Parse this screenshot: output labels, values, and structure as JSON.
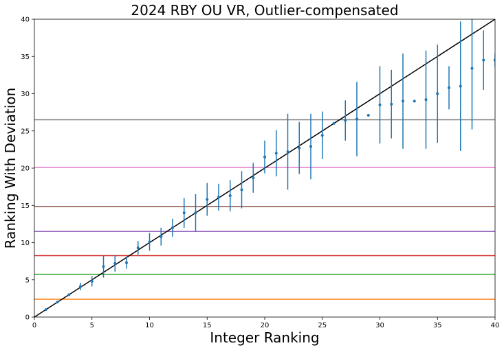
{
  "chart_data": {
    "type": "scatter",
    "title": "2024 RBY OU VR, Outlier-compensated",
    "xlabel": "Integer Ranking",
    "ylabel": "Ranking With Deviation",
    "xlim": [
      0,
      40
    ],
    "ylim": [
      0,
      40
    ],
    "xticks": [
      0,
      5,
      10,
      15,
      20,
      25,
      30,
      35,
      40
    ],
    "yticks": [
      0,
      5,
      10,
      15,
      20,
      25,
      30,
      35,
      40
    ],
    "grid": false,
    "reference_line": {
      "from": [
        0,
        0
      ],
      "to": [
        40,
        40
      ],
      "color": "#000000"
    },
    "horizontal_lines": [
      {
        "y": 2.4,
        "color": "#ff7f0e"
      },
      {
        "y": 5.75,
        "color": "#2ca02c"
      },
      {
        "y": 8.25,
        "color": "#d62728"
      },
      {
        "y": 11.5,
        "color": "#9467bd"
      },
      {
        "y": 14.85,
        "color": "#8c564b"
      },
      {
        "y": 20.1,
        "color": "#e377c2"
      },
      {
        "y": 26.5,
        "color": "#7f7f7f"
      }
    ],
    "series": [
      {
        "color": "#1f77b4",
        "points": [
          {
            "x": 1,
            "y": 1.0,
            "err": 0
          },
          {
            "x": 2,
            "y": 2.0,
            "err": 0
          },
          {
            "x": 3,
            "y": 3.0,
            "err": 0
          },
          {
            "x": 4,
            "y": 4.1,
            "err": 0.5
          },
          {
            "x": 5,
            "y": 4.8,
            "err": 0.7
          },
          {
            "x": 6,
            "y": 6.8,
            "err": 1.5
          },
          {
            "x": 7,
            "y": 7.2,
            "err": 1.1
          },
          {
            "x": 8,
            "y": 7.3,
            "err": 0.8
          },
          {
            "x": 9,
            "y": 9.3,
            "err": 0.9
          },
          {
            "x": 10,
            "y": 10.1,
            "err": 1.2
          },
          {
            "x": 11,
            "y": 10.8,
            "err": 1.2
          },
          {
            "x": 12,
            "y": 12.0,
            "err": 1.2
          },
          {
            "x": 13,
            "y": 14.0,
            "err": 2.0
          },
          {
            "x": 14,
            "y": 14.0,
            "err": 2.5
          },
          {
            "x": 15,
            "y": 15.8,
            "err": 2.2
          },
          {
            "x": 16,
            "y": 16.1,
            "err": 1.8
          },
          {
            "x": 17,
            "y": 16.3,
            "err": 2.1
          },
          {
            "x": 18,
            "y": 17.1,
            "err": 2.5
          },
          {
            "x": 19,
            "y": 18.7,
            "err": 2.0
          },
          {
            "x": 20,
            "y": 21.5,
            "err": 2.2
          },
          {
            "x": 21,
            "y": 22.0,
            "err": 3.1
          },
          {
            "x": 22,
            "y": 22.2,
            "err": 5.1
          },
          {
            "x": 23,
            "y": 22.7,
            "err": 3.5
          },
          {
            "x": 24,
            "y": 22.9,
            "err": 4.4
          },
          {
            "x": 25,
            "y": 24.4,
            "err": 3.2
          },
          {
            "x": 26,
            "y": 26.0,
            "err": 0
          },
          {
            "x": 27,
            "y": 26.4,
            "err": 2.7
          },
          {
            "x": 28,
            "y": 26.6,
            "err": 5.0
          },
          {
            "x": 29,
            "y": 27.1,
            "err": 0
          },
          {
            "x": 30,
            "y": 28.5,
            "err": 5.2
          },
          {
            "x": 31,
            "y": 28.6,
            "err": 4.6
          },
          {
            "x": 32,
            "y": 29.0,
            "err": 6.4
          },
          {
            "x": 33,
            "y": 29.0,
            "err": 0
          },
          {
            "x": 34,
            "y": 29.2,
            "err": 6.6
          },
          {
            "x": 35,
            "y": 30.0,
            "err": 6.6
          },
          {
            "x": 36,
            "y": 30.8,
            "err": 2.9
          },
          {
            "x": 37,
            "y": 31.0,
            "err": 8.7
          },
          {
            "x": 38,
            "y": 33.4,
            "err": 8.2
          },
          {
            "x": 39,
            "y": 34.5,
            "err": 4.0
          },
          {
            "x": 40,
            "y": 34.5,
            "err": 0.9
          }
        ]
      }
    ]
  }
}
